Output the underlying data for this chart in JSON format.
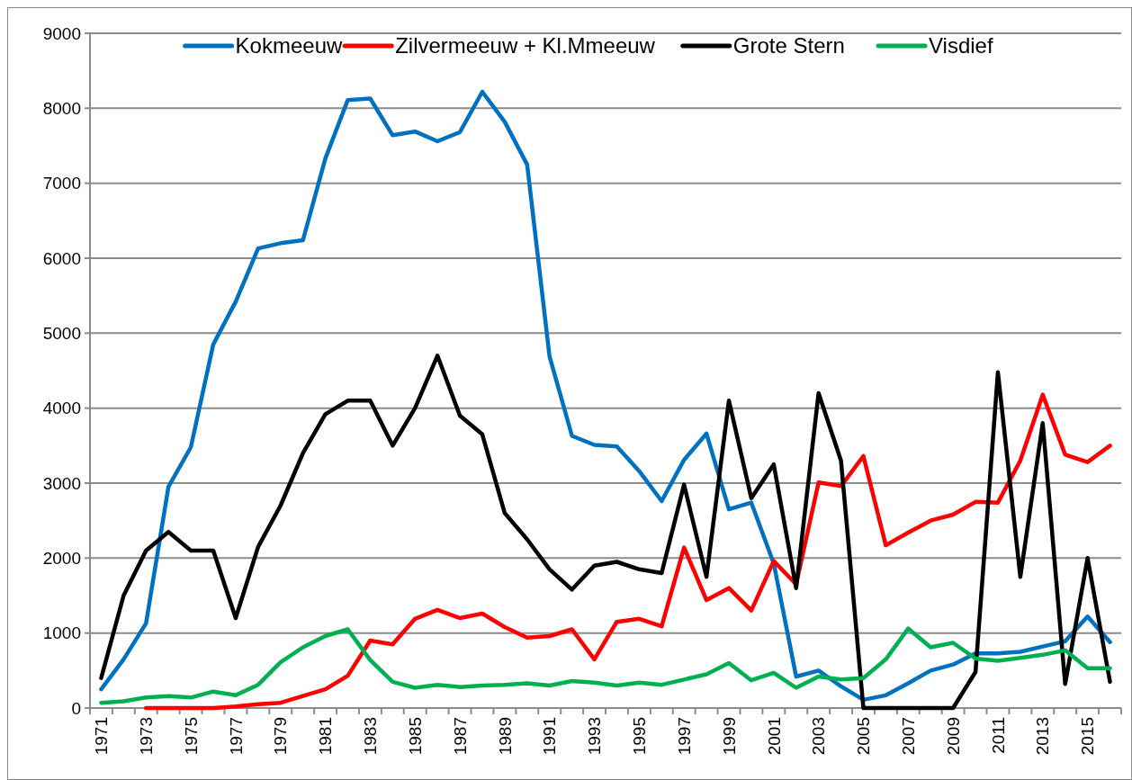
{
  "chart_data": {
    "type": "line",
    "categories": [
      "1971",
      null,
      "1973",
      null,
      "1975",
      null,
      "1977",
      null,
      "1979",
      null,
      "1981",
      null,
      "1983",
      null,
      "1985",
      null,
      "1987",
      null,
      "1989",
      null,
      "1991",
      null,
      "1993",
      null,
      "1995",
      null,
      "1997",
      null,
      "1999",
      null,
      "2001",
      null,
      "2003",
      null,
      "2005",
      null,
      "2007",
      null,
      "2009",
      null,
      "2011",
      null,
      "2013",
      null,
      "2015",
      null
    ],
    "series": [
      {
        "name": "Kokmeeuw",
        "color": "#0070c0",
        "values": [
          250,
          650,
          1130,
          2950,
          3480,
          4850,
          5420,
          6130,
          6200,
          6240,
          7330,
          8110,
          8130,
          7640,
          7690,
          7560,
          7680,
          8220,
          7820,
          7250,
          4690,
          3630,
          3510,
          3490,
          3160,
          2760,
          3310,
          3660,
          2650,
          2740,
          1930,
          420,
          500,
          290,
          110,
          170,
          330,
          500,
          580,
          730,
          730,
          750,
          820,
          890,
          1220,
          880
        ]
      },
      {
        "name": "Zilvermeeuw + Kl.Mmeeuw",
        "color": "#ff0000",
        "values": [
          null,
          null,
          0,
          0,
          0,
          0,
          20,
          50,
          70,
          160,
          250,
          430,
          900,
          850,
          1190,
          1310,
          1200,
          1260,
          1080,
          940,
          960,
          1050,
          650,
          1150,
          1190,
          1090,
          2140,
          1440,
          1600,
          1300,
          1960,
          1650,
          3010,
          2960,
          3360,
          2170,
          2340,
          2500,
          2580,
          2750,
          2740,
          3300,
          4180,
          3380,
          3280,
          3500
        ]
      },
      {
        "name": "Grote Stern",
        "color": "#000000",
        "values": [
          400,
          1500,
          2100,
          2350,
          2100,
          2100,
          1200,
          2150,
          2700,
          3400,
          3920,
          4100,
          4100,
          3500,
          4000,
          4700,
          3900,
          3650,
          2600,
          2250,
          1850,
          1580,
          1900,
          1950,
          1850,
          1800,
          2980,
          1750,
          4100,
          2800,
          3250,
          1600,
          4200,
          3300,
          0,
          0,
          0,
          0,
          0,
          480,
          4480,
          1750,
          3800,
          320,
          2000,
          350
        ]
      },
      {
        "name": "Visdief",
        "color": "#00b050",
        "values": [
          70,
          90,
          140,
          160,
          140,
          220,
          170,
          310,
          610,
          810,
          960,
          1050,
          640,
          350,
          270,
          310,
          280,
          300,
          310,
          330,
          300,
          360,
          340,
          300,
          340,
          310,
          380,
          450,
          600,
          370,
          470,
          270,
          420,
          380,
          400,
          650,
          1060,
          810,
          870,
          660,
          630,
          670,
          710,
          770,
          530,
          530
        ]
      }
    ],
    "ylim": [
      0,
      9000
    ],
    "yticks": [
      0,
      1000,
      2000,
      3000,
      4000,
      5000,
      6000,
      7000,
      8000,
      9000
    ],
    "grid": "y",
    "legend": "top",
    "marker": "none",
    "line_style": "solid"
  }
}
